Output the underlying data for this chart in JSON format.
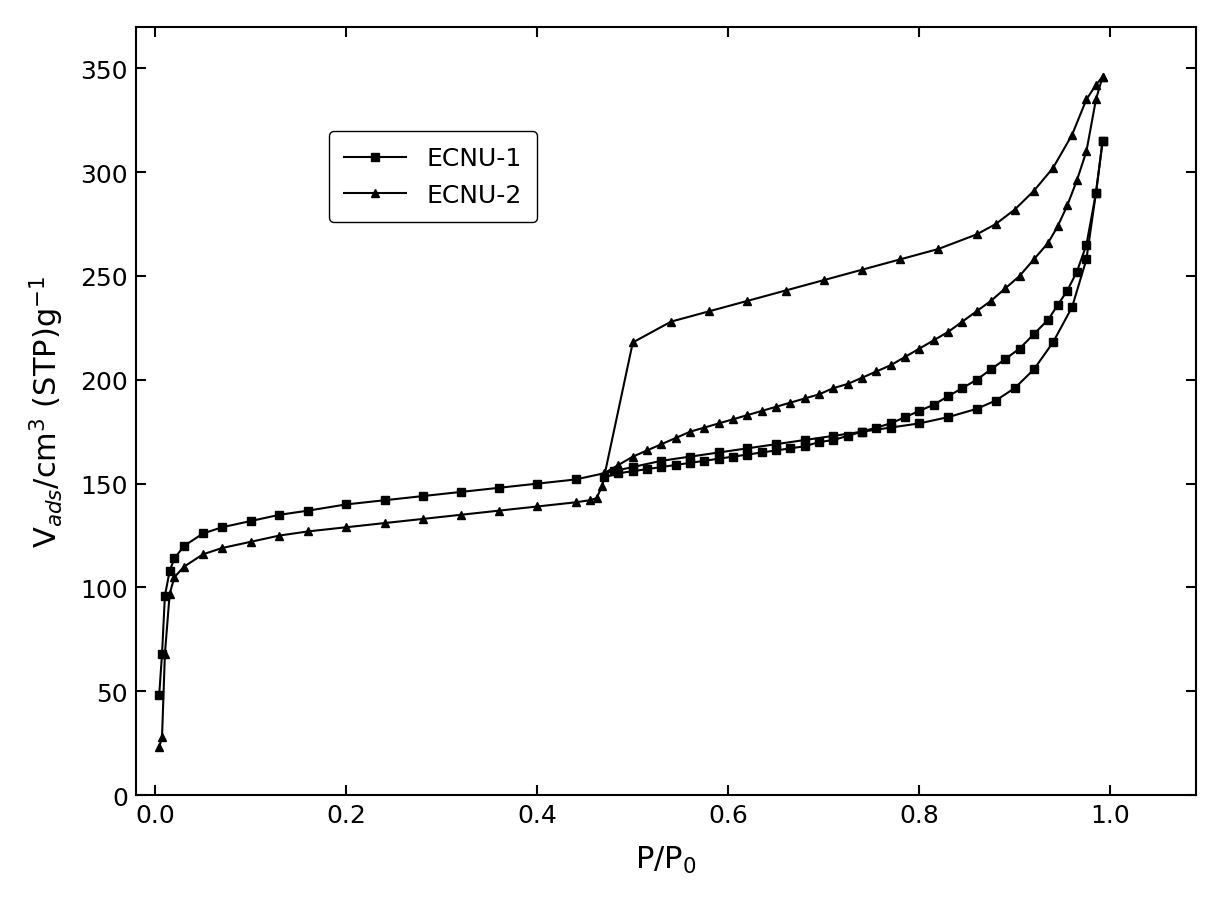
{
  "ecnu1_ads_x": [
    0.004,
    0.007,
    0.01,
    0.015,
    0.02,
    0.03,
    0.05,
    0.07,
    0.1,
    0.13,
    0.16,
    0.2,
    0.24,
    0.28,
    0.32,
    0.36,
    0.4,
    0.44,
    0.48,
    0.5,
    0.53,
    0.56,
    0.59,
    0.62,
    0.65,
    0.68,
    0.71,
    0.74,
    0.77,
    0.8,
    0.83,
    0.86,
    0.88,
    0.9,
    0.92,
    0.94,
    0.96,
    0.975,
    0.985,
    0.992
  ],
  "ecnu1_ads_y": [
    48,
    68,
    96,
    108,
    114,
    120,
    126,
    129,
    132,
    135,
    137,
    140,
    142,
    144,
    146,
    148,
    150,
    152,
    156,
    158,
    161,
    163,
    165,
    167,
    169,
    171,
    173,
    175,
    177,
    179,
    182,
    186,
    190,
    196,
    205,
    218,
    235,
    258,
    290,
    315
  ],
  "ecnu1_des_x": [
    0.992,
    0.985,
    0.975,
    0.965,
    0.955,
    0.945,
    0.935,
    0.92,
    0.905,
    0.89,
    0.875,
    0.86,
    0.845,
    0.83,
    0.815,
    0.8,
    0.785,
    0.77,
    0.755,
    0.74,
    0.725,
    0.71,
    0.695,
    0.68,
    0.665,
    0.65,
    0.635,
    0.62,
    0.605,
    0.59,
    0.575,
    0.56,
    0.545,
    0.53,
    0.515,
    0.5,
    0.485,
    0.47
  ],
  "ecnu1_des_y": [
    315,
    290,
    265,
    252,
    243,
    236,
    229,
    222,
    215,
    210,
    205,
    200,
    196,
    192,
    188,
    185,
    182,
    179,
    177,
    175,
    173,
    171,
    170,
    168,
    167,
    166,
    165,
    164,
    163,
    162,
    161,
    160,
    159,
    158,
    157,
    156,
    155,
    153
  ],
  "ecnu2_ads_x": [
    0.004,
    0.007,
    0.01,
    0.015,
    0.02,
    0.03,
    0.05,
    0.07,
    0.1,
    0.13,
    0.16,
    0.2,
    0.24,
    0.28,
    0.32,
    0.36,
    0.4,
    0.44,
    0.455,
    0.462,
    0.468,
    0.5,
    0.54,
    0.58,
    0.62,
    0.66,
    0.7,
    0.74,
    0.78,
    0.82,
    0.86,
    0.88,
    0.9,
    0.92,
    0.94,
    0.96,
    0.975,
    0.985,
    0.992
  ],
  "ecnu2_ads_y": [
    23,
    28,
    68,
    97,
    105,
    110,
    116,
    119,
    122,
    125,
    127,
    129,
    131,
    133,
    135,
    137,
    139,
    141,
    142,
    143,
    149,
    218,
    228,
    233,
    238,
    243,
    248,
    253,
    258,
    263,
    270,
    275,
    282,
    291,
    302,
    318,
    335,
    342,
    346
  ],
  "ecnu2_des_x": [
    0.992,
    0.985,
    0.975,
    0.965,
    0.955,
    0.945,
    0.935,
    0.92,
    0.905,
    0.89,
    0.875,
    0.86,
    0.845,
    0.83,
    0.815,
    0.8,
    0.785,
    0.77,
    0.755,
    0.74,
    0.725,
    0.71,
    0.695,
    0.68,
    0.665,
    0.65,
    0.635,
    0.62,
    0.605,
    0.59,
    0.575,
    0.56,
    0.545,
    0.53,
    0.515,
    0.5,
    0.485,
    0.47
  ],
  "ecnu2_des_y": [
    346,
    335,
    310,
    296,
    284,
    274,
    266,
    258,
    250,
    244,
    238,
    233,
    228,
    223,
    219,
    215,
    211,
    207,
    204,
    201,
    198,
    196,
    193,
    191,
    189,
    187,
    185,
    183,
    181,
    179,
    177,
    175,
    172,
    169,
    166,
    163,
    159,
    155
  ],
  "color": "#000000",
  "marker_ecnu1": "s",
  "marker_ecnu2": "^",
  "xlabel": "P/P$_0$",
  "ylabel": "V$_{ads}$/cm$^3$ (STP)g$^{-1}$",
  "xlim": [
    -0.02,
    1.09
  ],
  "ylim": [
    0,
    370
  ],
  "yticks": [
    0,
    50,
    100,
    150,
    200,
    250,
    300,
    350
  ],
  "xticks": [
    0.0,
    0.2,
    0.4,
    0.6,
    0.8,
    1.0
  ],
  "legend_labels": [
    "ECNU-1",
    "ECNU-2"
  ],
  "markersize": 6,
  "linewidth": 1.5,
  "figure_bg": "#ffffff"
}
